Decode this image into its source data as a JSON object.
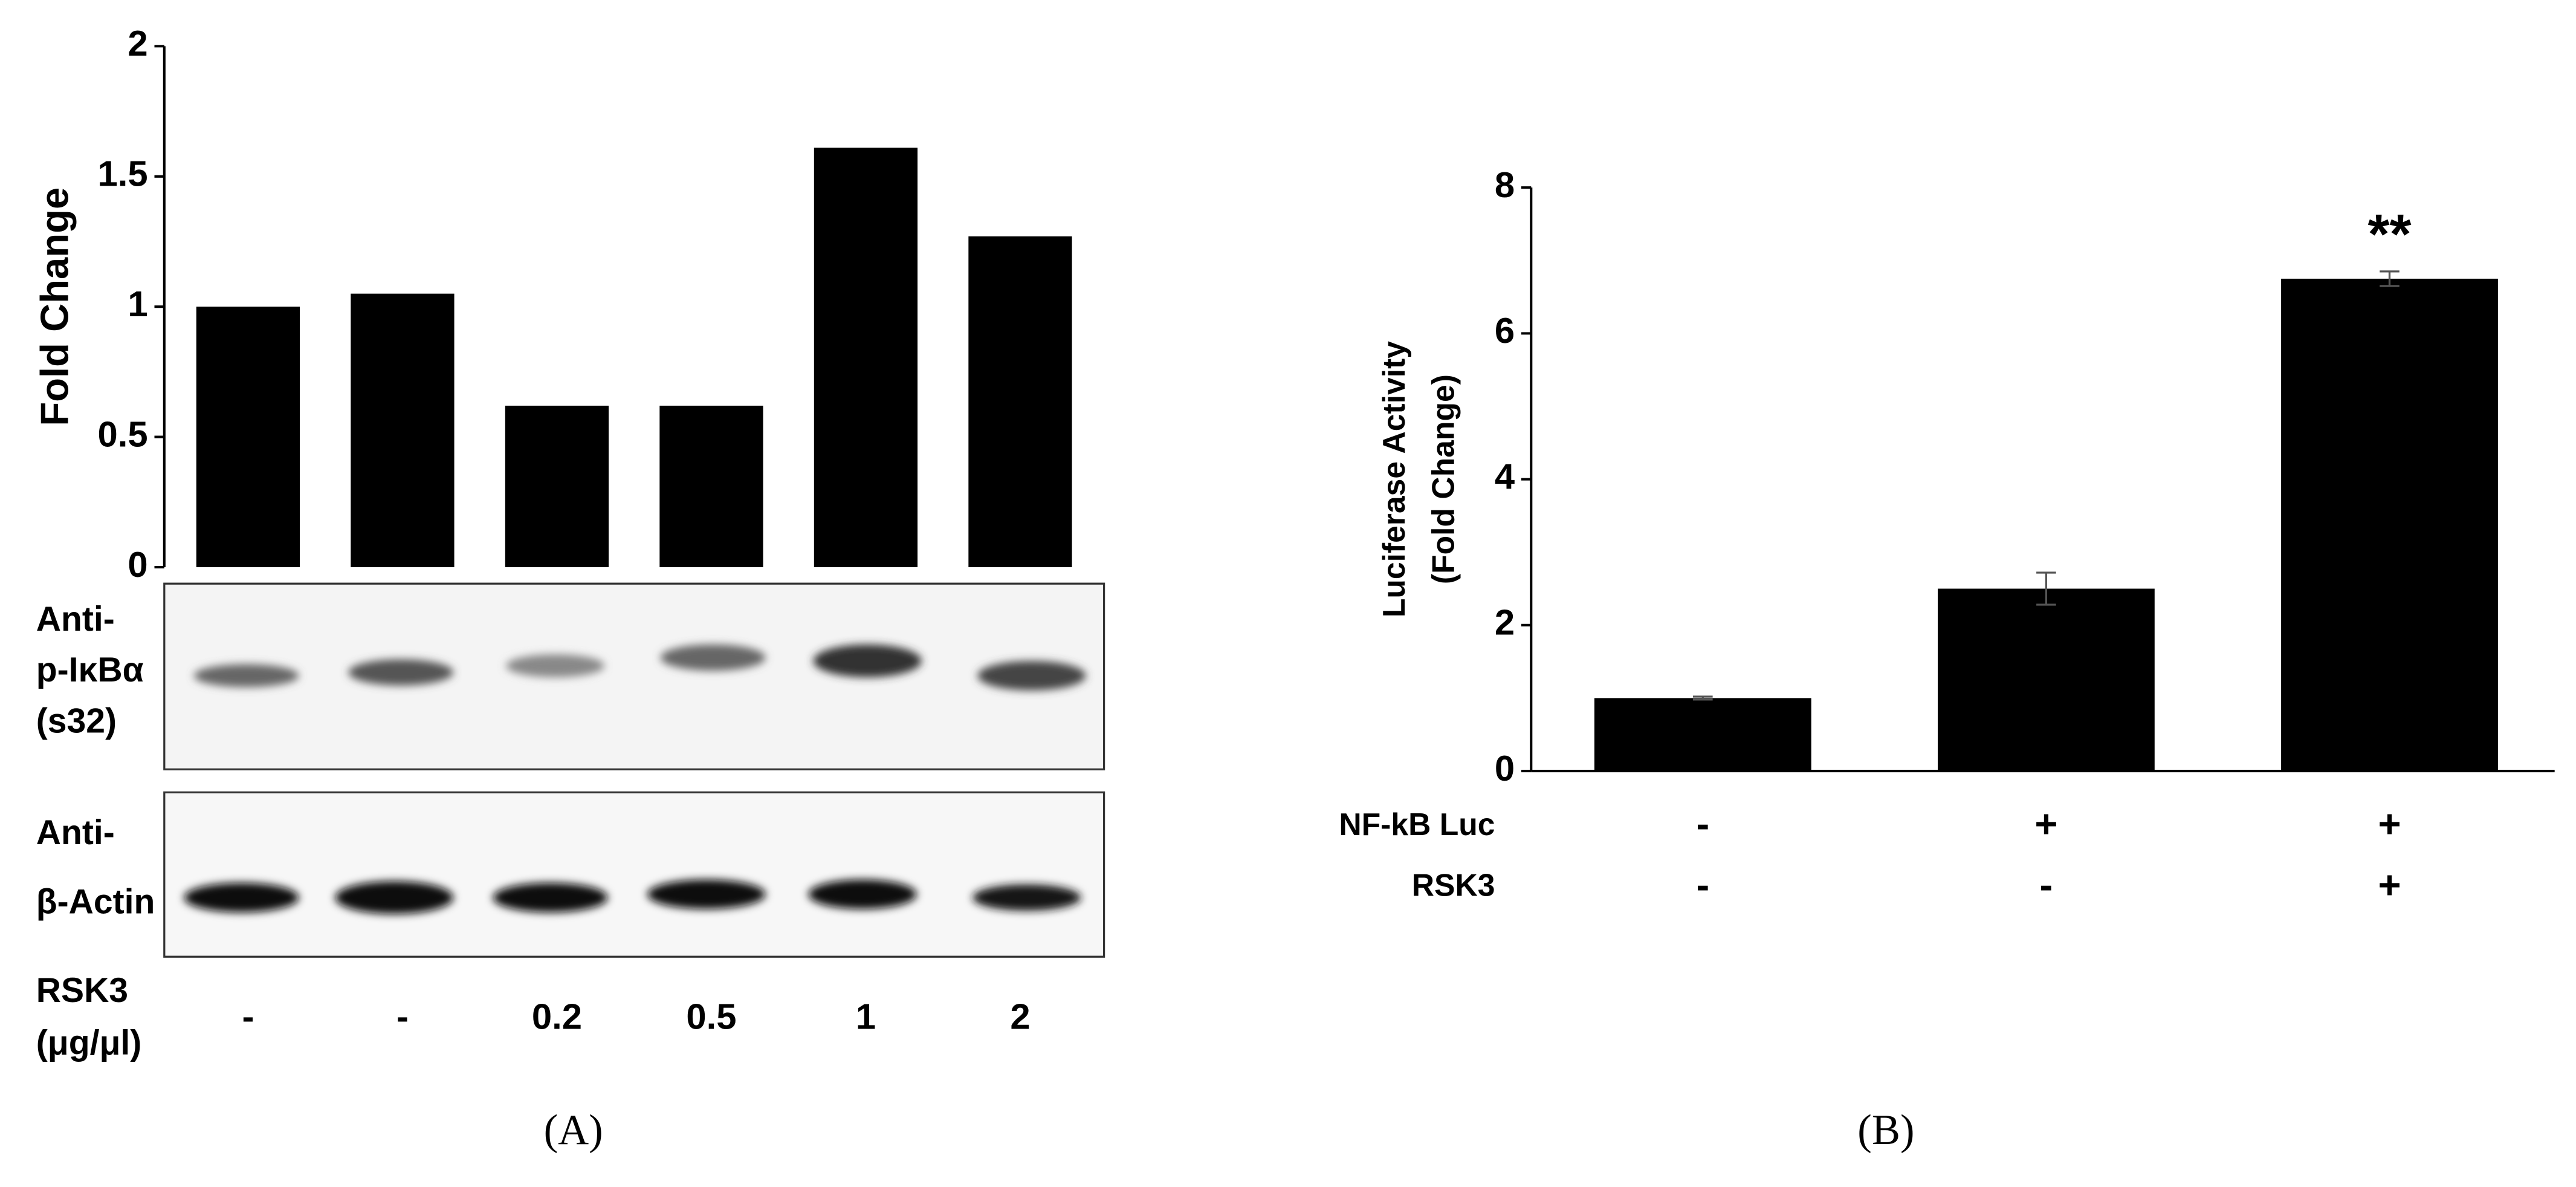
{
  "chart_data": [
    {
      "type": "bar",
      "panel": "(A)",
      "y_label": "Fold Change",
      "categories": [
        "-",
        "-",
        "0.2",
        "0.5",
        "1",
        "2"
      ],
      "values": [
        1.0,
        1.05,
        0.62,
        0.62,
        1.61,
        1.27
      ],
      "color": "#000000",
      "ylim": [
        0,
        2
      ],
      "yticks": [
        0,
        0.5,
        1,
        1.5,
        2
      ],
      "blot_labels": [
        [
          "Anti-",
          "p-IκBα",
          "(s32)"
        ],
        [
          "Anti-",
          "β-Actin"
        ]
      ],
      "x_label": [
        "RSK3",
        "(μg/μl)"
      ]
    },
    {
      "type": "bar",
      "panel": "(B)",
      "y_label": [
        "Luciferase Activity",
        "(Fold Change)"
      ],
      "values": [
        1.0,
        2.5,
        6.75
      ],
      "errors": [
        0.02,
        0.22,
        0.1
      ],
      "color": "#000000",
      "ylim": [
        0,
        8
      ],
      "yticks": [
        0,
        2,
        4,
        6,
        8
      ],
      "annotations": [
        {
          "text": "**",
          "category": 2
        }
      ],
      "conditions": [
        {
          "name": "NF-kB Luc",
          "values": [
            "-",
            "+",
            "+"
          ]
        },
        {
          "name": "RSK3",
          "values": [
            "-",
            "-",
            "+"
          ]
        }
      ]
    }
  ]
}
